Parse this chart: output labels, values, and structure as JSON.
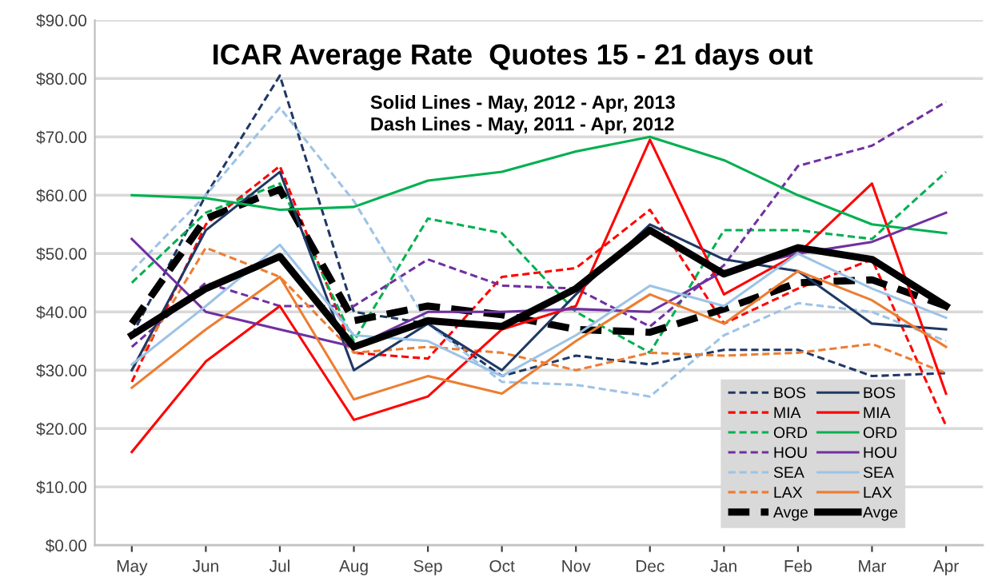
{
  "chart_data": {
    "type": "line",
    "title": "ICAR Average Rate  Quotes 15 - 21 days out",
    "subtitle": "Solid Lines - May, 2012 - Apr, 2013\nDash Lines - May, 2011 - Apr, 2012",
    "categories": [
      "May",
      "Jun",
      "Jul",
      "Aug",
      "Sep",
      "Oct",
      "Nov",
      "Dec",
      "Jan",
      "Feb",
      "Mar",
      "Apr"
    ],
    "series": [
      {
        "name": "BOS",
        "color": "#1f3864",
        "line_style": "dashed",
        "values": [
          36,
          60,
          80.5,
          40,
          38,
          29,
          32.5,
          31,
          33.5,
          33.5,
          29,
          29.5
        ]
      },
      {
        "name": "MIA",
        "color": "#ff0000",
        "line_style": "dashed",
        "values": [
          28,
          55,
          65,
          33,
          32,
          46,
          47.5,
          57.5,
          38,
          44,
          49,
          20.5
        ]
      },
      {
        "name": "ORD",
        "color": "#00b050",
        "line_style": "dashed",
        "values": [
          45,
          57,
          62,
          35,
          56,
          53.5,
          40,
          33,
          54,
          54,
          52.5,
          64
        ]
      },
      {
        "name": "HOU",
        "color": "#7030a0",
        "line_style": "dashed",
        "values": [
          34,
          45,
          41,
          41,
          49,
          44.5,
          44,
          37.5,
          48,
          65,
          68.5,
          76
        ]
      },
      {
        "name": "SEA",
        "color": "#9dc3e6",
        "line_style": "dashed",
        "values": [
          47,
          60,
          75,
          59,
          38,
          28,
          27.5,
          25.5,
          36,
          41.5,
          40,
          35
        ]
      },
      {
        "name": "LAX",
        "color": "#ed7d31",
        "line_style": "dashed",
        "values": [
          30,
          51,
          46,
          33,
          34,
          33,
          30,
          33,
          32.5,
          33,
          34.5,
          29.5
        ]
      },
      {
        "name": "Avge",
        "color": "#000000",
        "line_style": "dashed",
        "values": [
          38,
          56,
          61,
          38.5,
          41,
          39.5,
          37,
          36.5,
          40.5,
          45,
          45.5,
          41
        ]
      },
      {
        "name": "BOS",
        "color": "#1f3864",
        "line_style": "solid",
        "values": [
          30,
          54,
          64,
          30,
          38,
          30,
          43,
          55,
          49,
          47,
          38,
          37
        ]
      },
      {
        "name": "MIA",
        "color": "#ff0000",
        "line_style": "solid",
        "values": [
          16,
          31.5,
          41,
          21.5,
          25.5,
          37,
          41,
          69.5,
          43,
          50,
          62,
          26
        ]
      },
      {
        "name": "ORD",
        "color": "#00b050",
        "line_style": "solid",
        "values": [
          60,
          59.5,
          57.5,
          58,
          62.5,
          64,
          67.5,
          70,
          66,
          60,
          55,
          53.5
        ]
      },
      {
        "name": "HOU",
        "color": "#7030a0",
        "line_style": "solid",
        "values": [
          52.5,
          40,
          37,
          34,
          40,
          40,
          40.5,
          40,
          47,
          50,
          52,
          57
        ]
      },
      {
        "name": "SEA",
        "color": "#9dc3e6",
        "line_style": "solid",
        "values": [
          31,
          41,
          51.5,
          36,
          35,
          29,
          36,
          44.5,
          41,
          50,
          44,
          39
        ]
      },
      {
        "name": "LAX",
        "color": "#ed7d31",
        "line_style": "solid",
        "values": [
          27,
          37,
          46,
          25,
          29,
          26,
          35,
          43,
          38,
          47,
          42,
          34
        ]
      },
      {
        "name": "Avge",
        "color": "#000000",
        "line_style": "solid",
        "values": [
          36,
          44,
          49.5,
          34,
          38.5,
          37.5,
          44,
          54,
          46.5,
          51,
          49,
          41
        ]
      }
    ],
    "ylim": [
      0,
      90
    ],
    "yticks": [
      {
        "value": 0,
        "label": "$0.00"
      },
      {
        "value": 10,
        "label": "$10.00"
      },
      {
        "value": 20,
        "label": "$20.00"
      },
      {
        "value": 30,
        "label": "$30.00"
      },
      {
        "value": 40,
        "label": "$40.00"
      },
      {
        "value": 50,
        "label": "$50.00"
      },
      {
        "value": 60,
        "label": "$60.00"
      },
      {
        "value": 70,
        "label": "$70.00"
      },
      {
        "value": 80,
        "label": "$80.00"
      },
      {
        "value": 90,
        "label": "$90.00"
      }
    ],
    "grid": "y",
    "legend": "bottom right",
    "marker": "none"
  }
}
